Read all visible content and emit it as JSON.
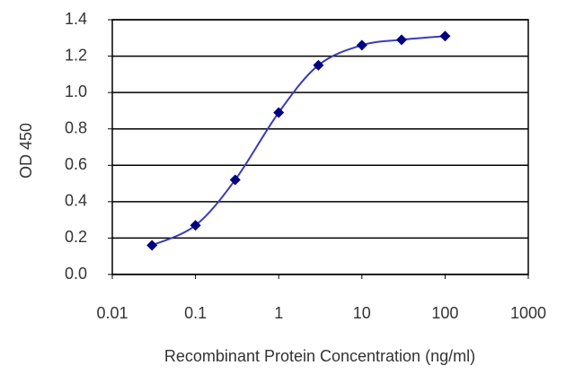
{
  "chart_data": {
    "type": "line",
    "x_label": "Recombinant Protein Concentration (ng/ml)",
    "y_label": "OD 450",
    "x": [
      0.03,
      0.1,
      0.3,
      1,
      3,
      10,
      30,
      100
    ],
    "series": [
      {
        "color": "#000080",
        "values": [
          0.16,
          0.27,
          0.52,
          0.89,
          1.15,
          1.26,
          1.29,
          1.31
        ]
      }
    ],
    "x_log": true,
    "xlim": [
      0.01,
      1000
    ],
    "xticks": [
      0.01,
      0.1,
      1,
      10,
      100,
      1000
    ],
    "ylim": [
      0,
      1.4
    ],
    "yticks": [
      {
        "value": 0,
        "label": "0.0"
      },
      0.2,
      0.4,
      0.6,
      0.8,
      {
        "value": 1,
        "label": "1.0"
      },
      1.2,
      1.4
    ],
    "grid": true
  }
}
